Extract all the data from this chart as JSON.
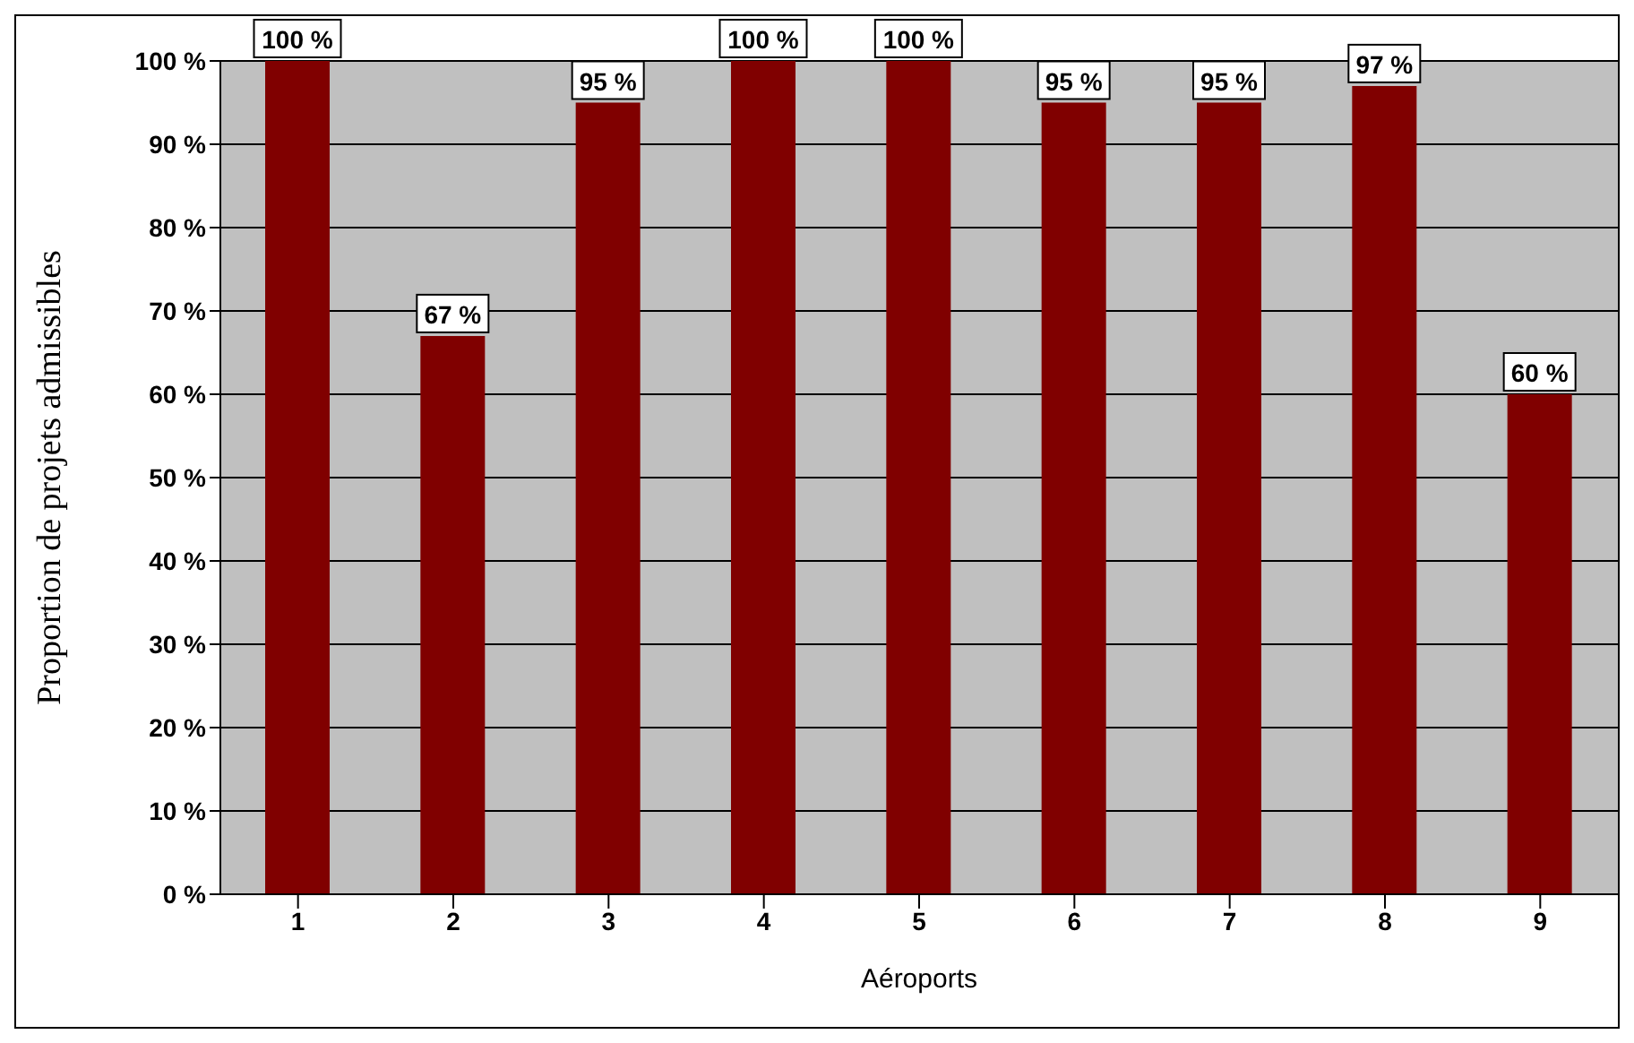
{
  "chart_data": {
    "type": "bar",
    "categories": [
      "1",
      "2",
      "3",
      "4",
      "5",
      "6",
      "7",
      "8",
      "9"
    ],
    "values": [
      100,
      67,
      95,
      100,
      100,
      95,
      95,
      97,
      60
    ],
    "value_labels": [
      "100 %",
      "67 %",
      "95 %",
      "100 %",
      "100 %",
      "95 %",
      "95 %",
      "97 %",
      "60 %"
    ],
    "color": "#800000",
    "xlabel": "Aéroports",
    "ylabel": "Proportion de projets admissibles",
    "ylim": [
      0,
      100
    ],
    "yticks": [
      {
        "value": 0,
        "label": "0 %"
      },
      {
        "value": 10,
        "label": "10 %"
      },
      {
        "value": 20,
        "label": "20 %"
      },
      {
        "value": 30,
        "label": "30 %"
      },
      {
        "value": 40,
        "label": "40 %"
      },
      {
        "value": 50,
        "label": "50 %"
      },
      {
        "value": 60,
        "label": "60 %"
      },
      {
        "value": 70,
        "label": "70 %"
      },
      {
        "value": 80,
        "label": "80 %"
      },
      {
        "value": 90,
        "label": "90 %"
      },
      {
        "value": 100,
        "label": "100 %"
      }
    ],
    "grid": "y"
  }
}
